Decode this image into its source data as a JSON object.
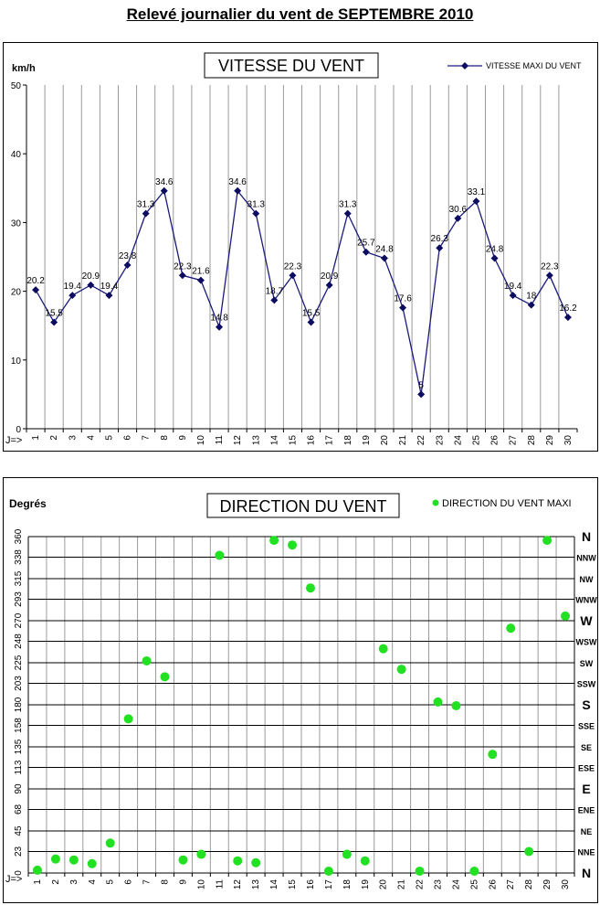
{
  "page": {
    "title": "Relevé journalier du vent de SEPTEMBRE 2010"
  },
  "colors": {
    "speed_line": "#1a1a7a",
    "speed_marker": "#0c0c60",
    "direction_dot": "#22e022",
    "grid": "#9a9a9a"
  },
  "chart_data": [
    {
      "type": "line",
      "title": "VITESSE DU VENT",
      "ylabel": "km/h",
      "xlabel": "J=>",
      "x": [
        1,
        2,
        3,
        4,
        5,
        6,
        7,
        8,
        9,
        10,
        11,
        12,
        13,
        14,
        15,
        16,
        17,
        18,
        19,
        20,
        21,
        22,
        23,
        24,
        25,
        26,
        27,
        28,
        29,
        30
      ],
      "ylim": [
        0,
        50
      ],
      "yticks": [
        0,
        10,
        20,
        30,
        40,
        50
      ],
      "grid": "vertical",
      "legend_position": "top-right",
      "series": [
        {
          "name": "VITESSE MAXI DU VENT",
          "values": [
            20.2,
            15.5,
            19.4,
            20.9,
            19.4,
            23.8,
            31.3,
            34.6,
            22.3,
            21.6,
            14.8,
            34.6,
            31.3,
            18.7,
            22.3,
            15.5,
            20.9,
            31.3,
            25.7,
            24.8,
            17.6,
            5,
            26.3,
            30.6,
            33.1,
            24.8,
            19.4,
            18,
            22.3,
            16.2
          ]
        }
      ]
    },
    {
      "type": "scatter",
      "title": "DIRECTION DU VENT",
      "ylabel": "Degrés",
      "xlabel": "J=>",
      "x": [
        1,
        2,
        3,
        4,
        5,
        6,
        7,
        8,
        9,
        10,
        11,
        12,
        13,
        14,
        15,
        16,
        17,
        18,
        19,
        20,
        21,
        22,
        23,
        24,
        25,
        26,
        27,
        28,
        29,
        30
      ],
      "ylim": [
        0,
        360
      ],
      "yticks": [
        0,
        23,
        45,
        68,
        90,
        113,
        135,
        158,
        180,
        203,
        225,
        248,
        270,
        293,
        315,
        338,
        360
      ],
      "compass_labels": [
        "N",
        "NNE",
        "NE",
        "ENE",
        "E",
        "ESE",
        "SE",
        "SSE",
        "S",
        "SSW",
        "SW",
        "WSW",
        "W",
        "WNW",
        "NW",
        "NNW",
        "N"
      ],
      "grid": "both",
      "legend_position": "top-right",
      "series": [
        {
          "name": "DIRECTION DU VENT MAXI",
          "values": [
            3,
            15,
            14,
            10,
            32,
            165,
            227,
            210,
            14,
            20,
            340,
            13,
            11,
            356,
            351,
            305,
            2,
            20,
            13,
            240,
            218,
            2,
            183,
            179,
            2,
            127,
            262,
            23,
            356,
            275
          ]
        }
      ]
    }
  ]
}
